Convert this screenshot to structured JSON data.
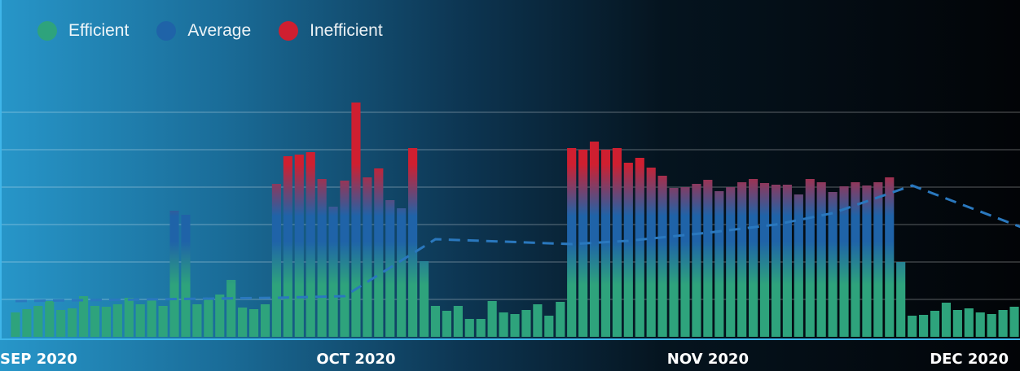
{
  "chart_data": {
    "type": "bar",
    "legend_placement": "top-left",
    "grid": true,
    "ylim": [
      0,
      340
    ],
    "colors": {
      "efficient": "#2ea37c",
      "average": "#1f63a8",
      "inefficient": "#cf1f30",
      "average_line": "#2a78be"
    },
    "legend": [
      {
        "key": "efficient",
        "label": "Efficient",
        "color": "#2ea37c"
      },
      {
        "key": "average",
        "label": "Average",
        "color": "#1f63a8"
      },
      {
        "key": "inefficient",
        "label": "Inefficient",
        "color": "#cf1f30"
      }
    ],
    "x_ticks": [
      {
        "label": "SEP 2020",
        "index": 0,
        "anchor": "start"
      },
      {
        "label": "OCT 2020",
        "index": 30,
        "anchor": "middle"
      },
      {
        "label": "NOV 2020",
        "index": 61,
        "anchor": "middle"
      },
      {
        "label": "DEC 2020",
        "index": 91,
        "anchor": "end"
      }
    ],
    "values": [
      30,
      34,
      38,
      44,
      33,
      35,
      50,
      38,
      37,
      40,
      48,
      40,
      46,
      38,
      155,
      150,
      40,
      48,
      52,
      70,
      36,
      34,
      40,
      188,
      222,
      224,
      227,
      194,
      160,
      192,
      288,
      196,
      207,
      168,
      158,
      232,
      93,
      38,
      32,
      38,
      22,
      22,
      44,
      30,
      28,
      33,
      40,
      26,
      43,
      232,
      230,
      240,
      230,
      232,
      214,
      220,
      208,
      198,
      183,
      184,
      188,
      193,
      179,
      184,
      190,
      194,
      189,
      187,
      187,
      175,
      194,
      190,
      178,
      185,
      190,
      186,
      190,
      196,
      92,
      26,
      27,
      32,
      42,
      33,
      35,
      30,
      28,
      33,
      37
    ],
    "series": [
      {
        "name": "Average",
        "style": "dashed-line",
        "points": [
          [
            0,
            44
          ],
          [
            23,
            48
          ],
          [
            29,
            50
          ],
          [
            37,
            120
          ],
          [
            49,
            114
          ],
          [
            54,
            118
          ],
          [
            61,
            128
          ],
          [
            67,
            138
          ],
          [
            72,
            152
          ],
          [
            79,
            186
          ],
          [
            91,
            122
          ]
        ]
      }
    ]
  }
}
